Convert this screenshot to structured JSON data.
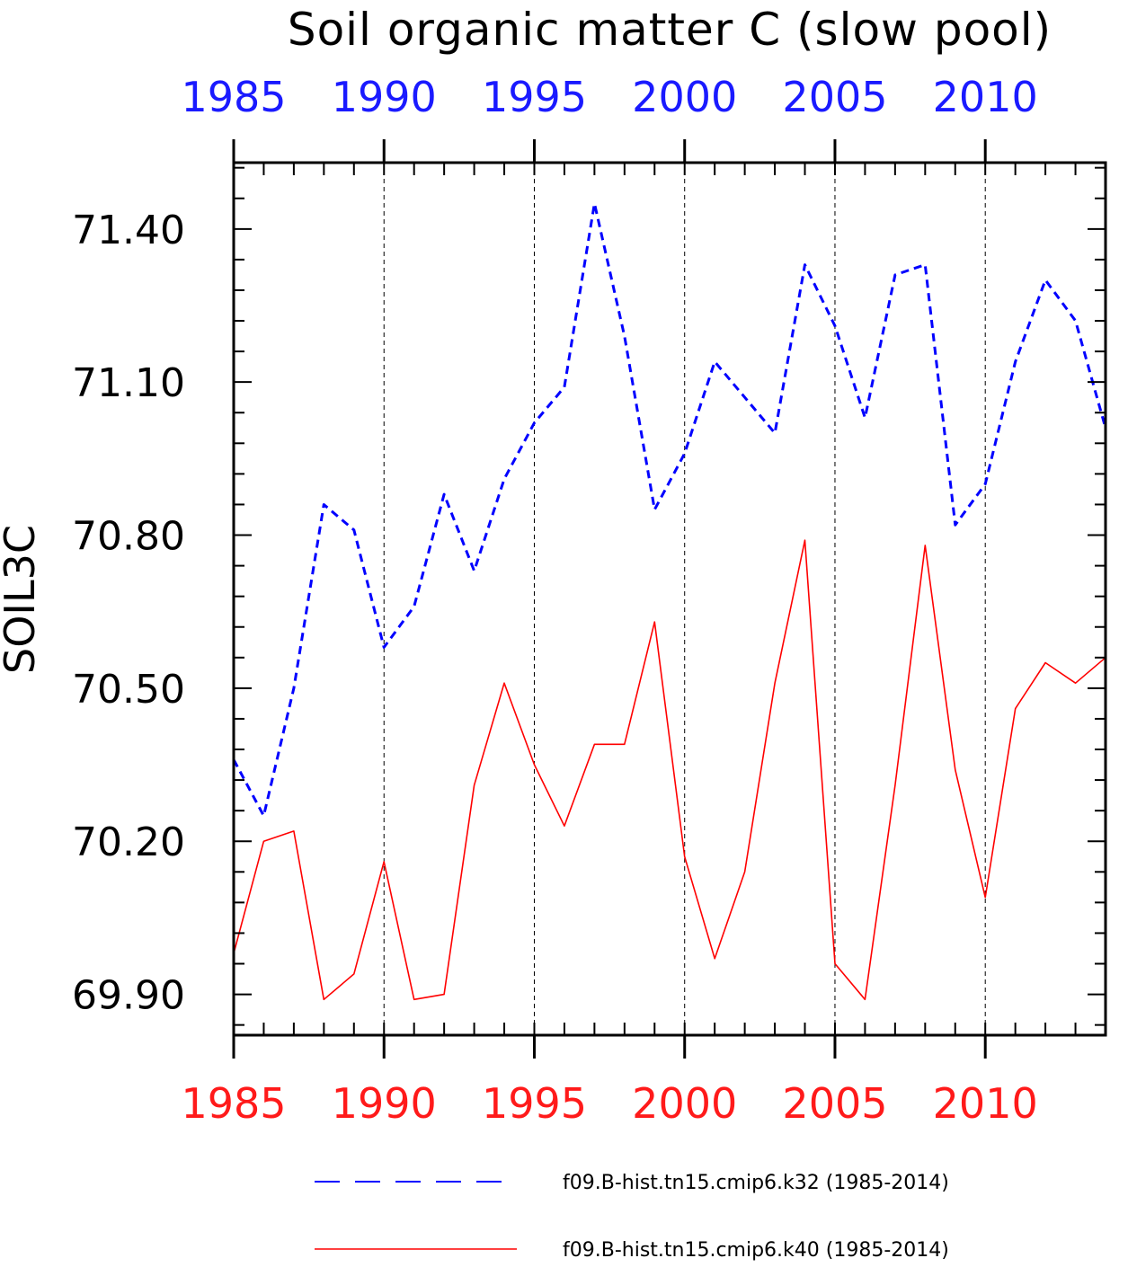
{
  "chart_data": {
    "type": "line",
    "title": "Soil organic matter C (slow pool)",
    "ylabel": "SOIL3C",
    "xlabel": "",
    "xlim": [
      1985,
      2014
    ],
    "ylim": [
      69.82,
      71.53
    ],
    "yticks": [
      69.9,
      70.2,
      70.5,
      70.8,
      71.1,
      71.4
    ],
    "ytick_labels": [
      "69.90",
      "70.20",
      "70.50",
      "70.80",
      "71.10",
      "71.40"
    ],
    "xticks": [
      1985,
      1990,
      1995,
      2000,
      2005,
      2010
    ],
    "xtick_labels_top": [
      "1985",
      "1990",
      "1995",
      "2000",
      "2005",
      "2010"
    ],
    "xtick_labels_bottom": [
      "1985",
      "1990",
      "1995",
      "2000",
      "2005",
      "2010"
    ],
    "top_axis_color": "#1a1aff",
    "bottom_axis_color": "#ff1a1a",
    "grid": "vertical dashed at major x ticks",
    "legend_position": "bottom",
    "x": [
      1985,
      1986,
      1987,
      1988,
      1989,
      1990,
      1991,
      1992,
      1993,
      1994,
      1995,
      1996,
      1997,
      1998,
      1999,
      2000,
      2001,
      2002,
      2003,
      2004,
      2005,
      2006,
      2007,
      2008,
      2009,
      2010,
      2011,
      2012,
      2013,
      2014
    ],
    "series": [
      {
        "name": "f09.B-hist.tn15.cmip6.k32 (1985-2014)",
        "color": "#0000ff",
        "style": "dashed",
        "values": [
          70.36,
          70.25,
          70.5,
          70.86,
          70.81,
          70.58,
          70.66,
          70.88,
          70.73,
          70.91,
          71.02,
          71.09,
          71.45,
          71.19,
          70.85,
          70.96,
          71.14,
          71.07,
          71.0,
          71.33,
          71.21,
          71.03,
          71.31,
          71.33,
          70.82,
          70.9,
          71.14,
          71.3,
          71.22,
          71.01
        ]
      },
      {
        "name": "f09.B-hist.tn15.cmip6.k40 (1985-2014)",
        "color": "#ff0000",
        "style": "solid",
        "values": [
          69.98,
          70.2,
          70.22,
          69.89,
          69.94,
          70.16,
          69.89,
          69.9,
          70.31,
          70.51,
          70.35,
          70.23,
          70.39,
          70.39,
          70.63,
          70.17,
          69.97,
          70.14,
          70.51,
          70.79,
          69.96,
          69.89,
          70.31,
          70.78,
          70.34,
          70.09,
          70.46,
          70.55,
          70.51,
          70.56
        ]
      }
    ]
  }
}
